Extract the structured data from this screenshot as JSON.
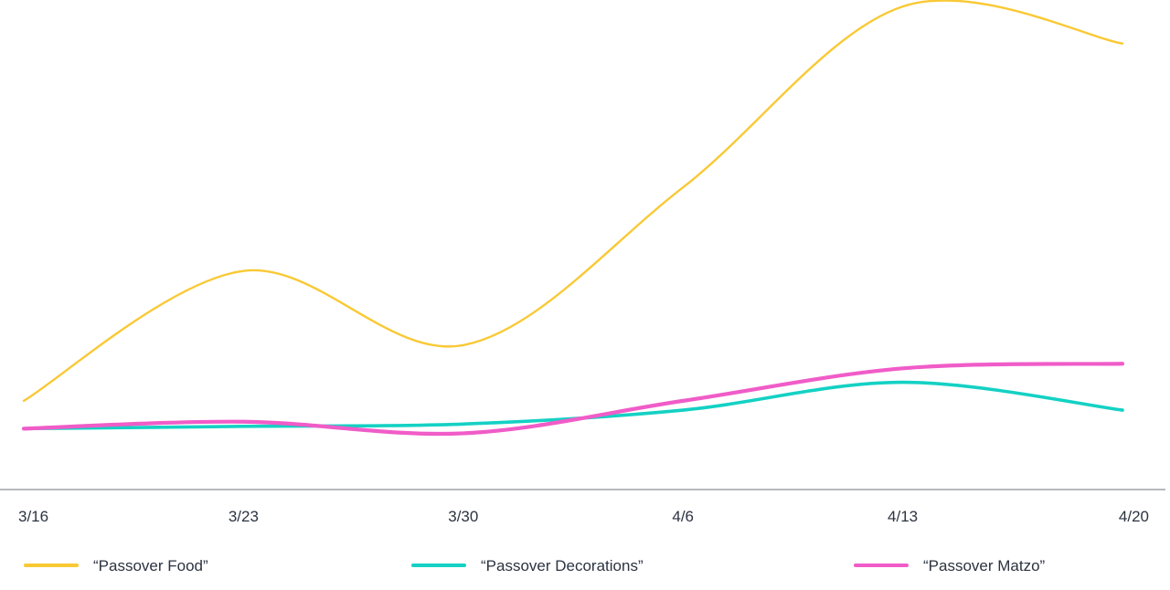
{
  "chart_data": {
    "type": "line",
    "title": "",
    "xlabel": "",
    "ylabel": "",
    "x_ticks": [
      "3/16",
      "3/23",
      "3/30",
      "4/6",
      "4/13",
      "4/20"
    ],
    "ylim": [
      0,
      100
    ],
    "grid": false,
    "legend_position": "bottom",
    "series": [
      {
        "name": "“Passover Food”",
        "color": "#F9C935",
        "points": [
          {
            "x": "3/16",
            "y": 14
          },
          {
            "x": "3/23",
            "y": 42
          },
          {
            "x": "3/30",
            "y": 26
          },
          {
            "x": "4/6",
            "y": 60
          },
          {
            "x": "4/13",
            "y": 99
          },
          {
            "x": "4/20",
            "y": 91
          }
        ]
      },
      {
        "name": "“Passover Decorations”",
        "color": "#14D1C4",
        "points": [
          {
            "x": "3/16",
            "y": 8
          },
          {
            "x": "3/23",
            "y": 8.5
          },
          {
            "x": "3/30",
            "y": 9
          },
          {
            "x": "4/6",
            "y": 12
          },
          {
            "x": "4/13",
            "y": 18
          },
          {
            "x": "4/20",
            "y": 12
          }
        ]
      },
      {
        "name": "“Passover Matzo”",
        "color": "#F05CC8",
        "points": [
          {
            "x": "3/16",
            "y": 8
          },
          {
            "x": "3/23",
            "y": 9.5
          },
          {
            "x": "3/30",
            "y": 7
          },
          {
            "x": "4/6",
            "y": 14
          },
          {
            "x": "4/13",
            "y": 21
          },
          {
            "x": "4/20",
            "y": 22
          }
        ]
      }
    ]
  }
}
